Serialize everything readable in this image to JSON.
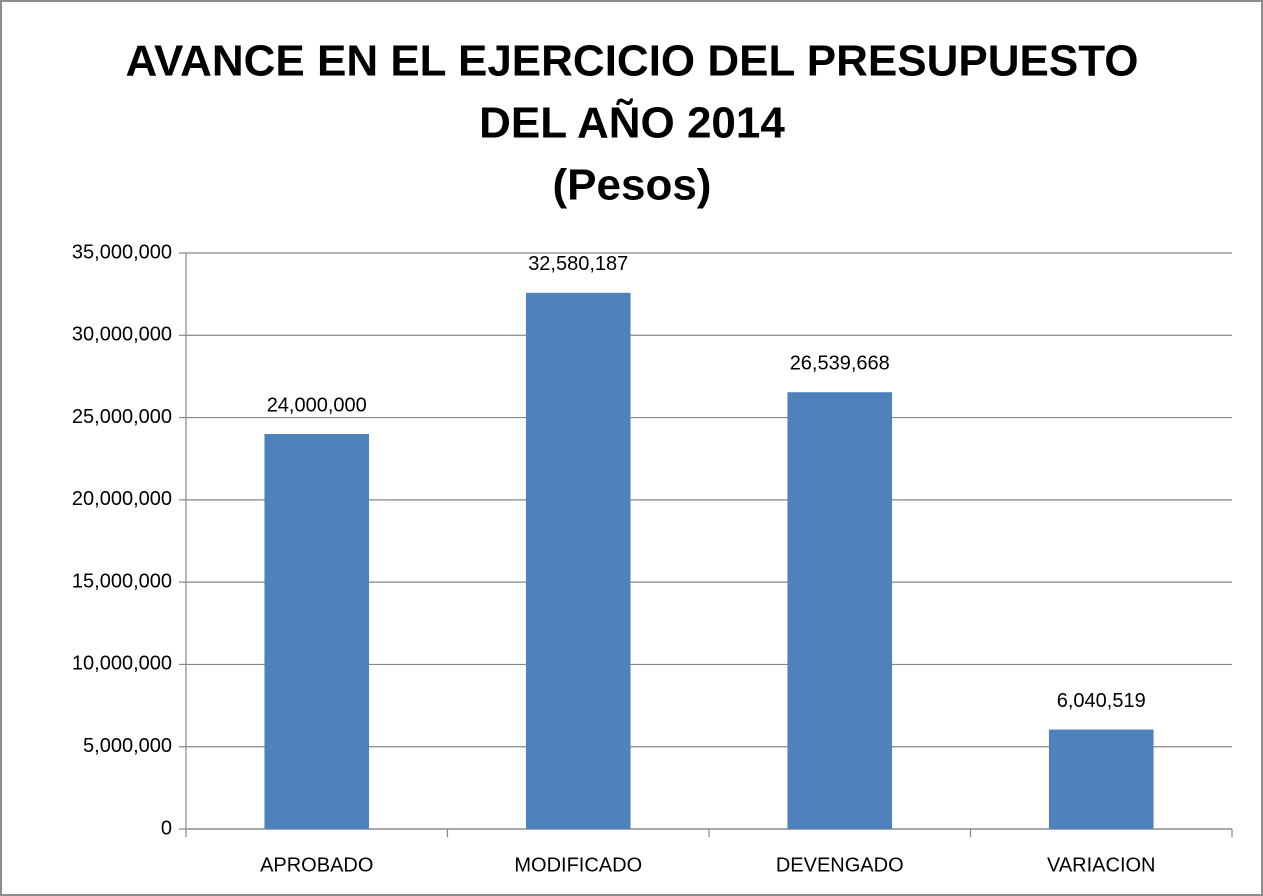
{
  "chart_data": {
    "type": "bar",
    "title": [
      "AVANCE EN EL  EJERCICIO DEL PRESUPUESTO",
      "DEL AÑO 2014",
      "(Pesos)"
    ],
    "categories": [
      "APROBADO",
      "MODIFICADO",
      "DEVENGADO",
      "VARIACION"
    ],
    "values": [
      24000000,
      32580187,
      26539668,
      6040519
    ],
    "value_labels": [
      "24,000,000",
      "32,580,187",
      "26,539,668",
      "6,040,519"
    ],
    "color": "#4f81bd",
    "ylim": [
      0,
      35000000
    ],
    "yticks": [
      0,
      {
        "value": 5000000,
        "label": "5,000,000"
      },
      {
        "value": 10000000,
        "label": "10,000,000"
      },
      {
        "value": 15000000,
        "label": "15,000,000"
      },
      {
        "value": 20000000,
        "label": "20,000,000"
      },
      {
        "value": 25000000,
        "label": "25,000,000"
      },
      {
        "value": 30000000,
        "label": "30,000,000"
      },
      {
        "value": 35000000,
        "label": "35,000,000"
      }
    ],
    "grid": true
  }
}
